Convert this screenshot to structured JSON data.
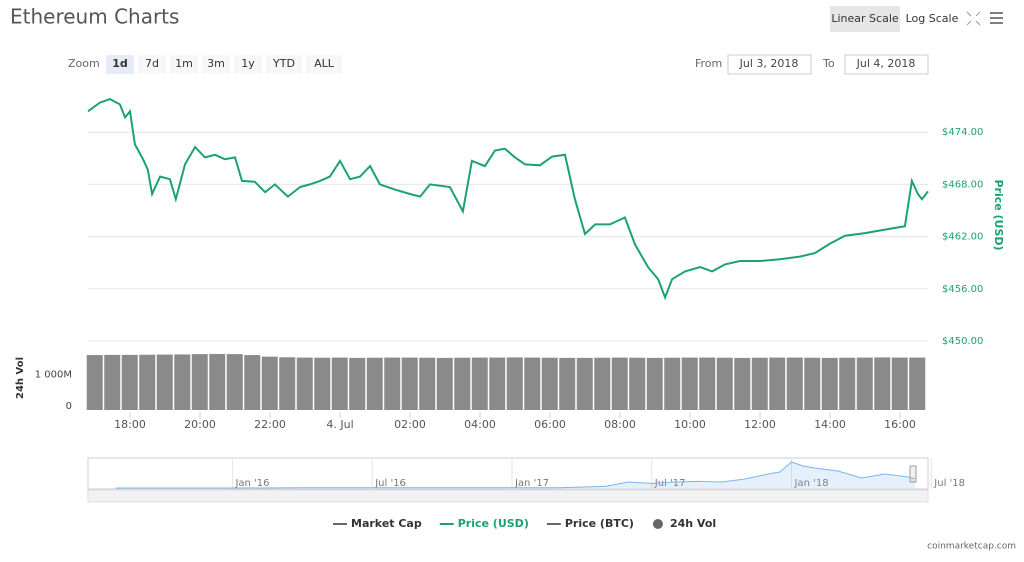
{
  "header": {
    "title": "Ethereum Charts",
    "scale_buttons": [
      "Linear Scale",
      "Log Scale"
    ]
  },
  "controls": {
    "zoom_label": "Zoom",
    "zoom": [
      "1d",
      "7d",
      "1m",
      "3m",
      "1y",
      "YTD",
      "ALL"
    ],
    "from_label": "From",
    "from": "Jul 3, 2018",
    "to_label": "To",
    "to": "Jul 4, 2018"
  },
  "chart_data": [
    {
      "type": "line",
      "y_label": "Price (USD)",
      "color": "#1aa275",
      "grid": true,
      "x": [
        -7.2,
        -6.86,
        -6.57,
        -6.29,
        -6.14,
        -6,
        -5.86,
        -5.63,
        -5.49,
        -5.37,
        -5.14,
        -4.86,
        -4.69,
        -4.43,
        -4.14,
        -3.86,
        -3.57,
        -3.29,
        -3,
        -2.8,
        -2.43,
        -2.14,
        -1.86,
        -1.49,
        -1.14,
        -0.86,
        -0.57,
        -0.29,
        0,
        0.29,
        0.57,
        0.86,
        1.14,
        1.57,
        2,
        2.29,
        2.57,
        3.14,
        3.51,
        3.77,
        4.14,
        4.43,
        4.71,
        5,
        5.29,
        5.71,
        6.06,
        6.43,
        6.71,
        7,
        7.29,
        7.71,
        8.14,
        8.43,
        8.8,
        9.09,
        9.29,
        9.49,
        9.86,
        10.29,
        10.63,
        11,
        11.43,
        12,
        12.57,
        13.14,
        13.57,
        14,
        14.43,
        15,
        15.43,
        15.86,
        16.14,
        16.34,
        16.51,
        16.63,
        16.8
      ],
      "values": [
        476.4,
        477.4,
        477.8,
        477.2,
        475.7,
        476.4,
        472.6,
        470.9,
        469.7,
        466.9,
        468.9,
        468.6,
        466.3,
        470.3,
        472.3,
        471.1,
        471.4,
        470.9,
        471.1,
        468.4,
        468.3,
        467.1,
        468.0,
        466.6,
        467.7,
        468.0,
        468.4,
        468.9,
        470.7,
        468.6,
        468.9,
        470.1,
        468.0,
        467.4,
        466.9,
        466.6,
        468.0,
        467.7,
        464.9,
        470.7,
        470.1,
        471.9,
        472.1,
        471.1,
        470.3,
        470.2,
        471.2,
        471.4,
        466.3,
        462.3,
        463.4,
        463.4,
        464.2,
        461.1,
        458.5,
        457.1,
        455.0,
        457.1,
        458.0,
        458.5,
        458.0,
        458.8,
        459.2,
        459.2,
        459.4,
        459.7,
        460.1,
        461.2,
        462.1,
        462.4,
        462.7,
        463.0,
        463.2,
        468.4,
        466.9,
        466.3,
        467.2
      ],
      "xlim": [
        -7.2,
        16.8
      ],
      "xticks": [
        {
          "value": -6,
          "label": "18:00"
        },
        {
          "value": -4,
          "label": "20:00"
        },
        {
          "value": -2,
          "label": "22:00"
        },
        {
          "value": 0,
          "label": "4. Jul"
        },
        {
          "value": 2,
          "label": "02:00"
        },
        {
          "value": 4,
          "label": "04:00"
        },
        {
          "value": 6,
          "label": "06:00"
        },
        {
          "value": 8,
          "label": "08:00"
        },
        {
          "value": 10,
          "label": "10:00"
        },
        {
          "value": 12,
          "label": "12:00"
        },
        {
          "value": 14,
          "label": "14:00"
        },
        {
          "value": 16,
          "label": "16:00"
        }
      ],
      "ylim": [
        450,
        480
      ],
      "yticks": [
        {
          "value": 474,
          "label": "$474.00"
        },
        {
          "value": 468,
          "label": "$468.00"
        },
        {
          "value": 462,
          "label": "$462.00"
        },
        {
          "value": 456,
          "label": "$456.00"
        },
        {
          "value": 450,
          "label": "$450.00"
        }
      ]
    },
    {
      "type": "bar",
      "y_label": "24h Vol",
      "color": "#8a8a8a",
      "x": [
        -7,
        -6.5,
        -6,
        -5.5,
        -5,
        -4.5,
        -4,
        -3.5,
        -3,
        -2.5,
        -2,
        -1.5,
        -1,
        -0.5,
        0,
        0.5,
        1,
        1.5,
        2,
        2.5,
        3,
        3.5,
        4,
        4.5,
        5,
        5.5,
        6,
        6.5,
        7,
        7.5,
        8,
        8.5,
        9,
        9.5,
        10,
        10.5,
        11,
        11.5,
        12,
        12.5,
        13,
        13.5,
        14,
        14.5,
        15,
        15.5,
        16,
        16.5
      ],
      "values": [
        1740,
        1745,
        1745,
        1750,
        1755,
        1760,
        1770,
        1775,
        1770,
        1740,
        1690,
        1670,
        1660,
        1655,
        1660,
        1650,
        1655,
        1660,
        1660,
        1655,
        1650,
        1655,
        1660,
        1660,
        1665,
        1660,
        1655,
        1650,
        1650,
        1655,
        1660,
        1655,
        1650,
        1655,
        1660,
        1660,
        1655,
        1650,
        1655,
        1660,
        1660,
        1655,
        1650,
        1655,
        1660,
        1665,
        1660,
        1660
      ],
      "xlim": [
        -7.2,
        16.8
      ],
      "ylim": [
        0,
        1900
      ],
      "yticks": [
        0,
        {
          "value": 1000,
          "label": "1 000M"
        }
      ]
    },
    {
      "type": "area",
      "color": "#7cb5ec",
      "x": [
        -5,
        -3,
        0,
        3,
        6,
        9,
        12,
        14,
        16,
        17,
        18,
        19,
        20,
        21,
        22,
        23,
        23.5,
        24,
        24.5,
        25,
        26,
        27,
        28,
        29,
        29.3
      ],
      "values": [
        1,
        1,
        1,
        10,
        12,
        11,
        8,
        15,
        80,
        300,
        230,
        300,
        330,
        300,
        450,
        700,
        800,
        1300,
        1100,
        1000,
        850,
        500,
        700,
        550,
        470
      ],
      "xlim": [
        -5.9,
        29.3
      ],
      "ylim": [
        0,
        1450
      ],
      "xticks": [
        {
          "value": 0,
          "label": "Jan '16"
        },
        {
          "value": 6,
          "label": "Jul '16"
        },
        {
          "value": 12,
          "label": "Jan '17"
        },
        {
          "value": 18,
          "label": "Jul '17"
        },
        {
          "value": 24,
          "label": "Jan '18"
        },
        {
          "value": 30,
          "label": "Jul '18"
        }
      ]
    }
  ],
  "legend": [
    {
      "name": "Market Cap",
      "color": "#666666"
    },
    {
      "name": "Price (USD)",
      "color": "#1aa275"
    },
    {
      "name": "Price (BTC)",
      "color": "#666666"
    },
    {
      "name": "24h Vol",
      "color": "#666666"
    }
  ],
  "credit": "coinmarketcap.com"
}
